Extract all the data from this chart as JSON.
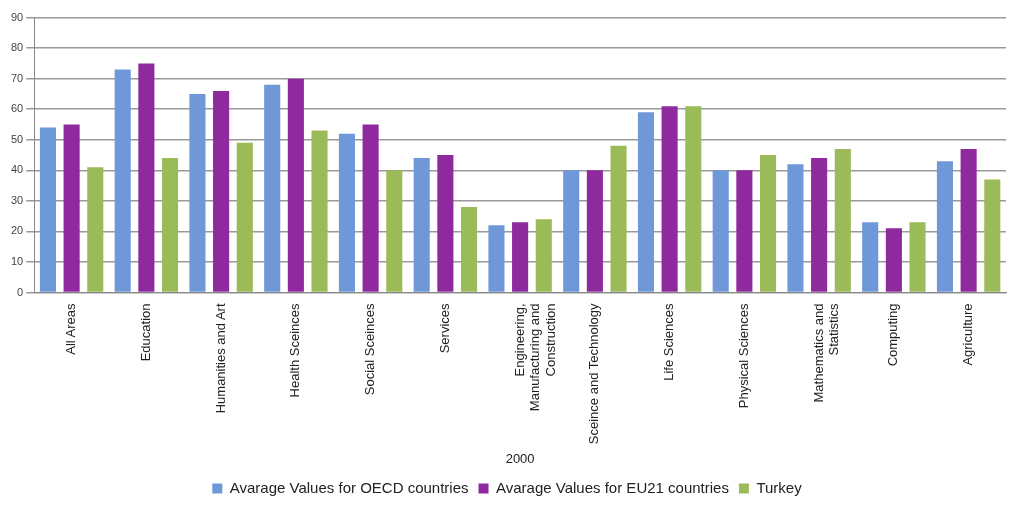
{
  "chart_data": {
    "type": "bar",
    "xlabel": "2000",
    "categories": [
      "All Areas",
      "Education",
      "Humanities and Art",
      "Health Sceinces",
      "Social Sceinces",
      "Services",
      "Engineering, Manufacturing and Construction",
      "Sceince and Technology",
      "Life Sciences",
      "Physical Sciences",
      "Mathematics and Statistics",
      "Computing",
      "Agriculture"
    ],
    "series": [
      {
        "name": "Avarage Values for OECD countries",
        "color": "#6f98d8",
        "values": [
          54,
          73,
          65,
          68,
          52,
          44,
          22,
          40,
          59,
          40,
          42,
          23,
          43
        ]
      },
      {
        "name": "Avarage Values for EU21 countries",
        "color": "#8e2a9e",
        "values": [
          55,
          75,
          66,
          70,
          55,
          45,
          23,
          40,
          61,
          40,
          44,
          21,
          47
        ]
      },
      {
        "name": "Turkey",
        "color": "#9bbb59",
        "values": [
          41,
          44,
          49,
          53,
          40,
          28,
          24,
          48,
          61,
          45,
          47,
          23,
          37
        ]
      }
    ],
    "ylim": [
      0,
      90
    ],
    "yticks": [
      0,
      10,
      20,
      30,
      40,
      50,
      60,
      70,
      80,
      90
    ],
    "grid": "y",
    "legend": "bottom"
  }
}
